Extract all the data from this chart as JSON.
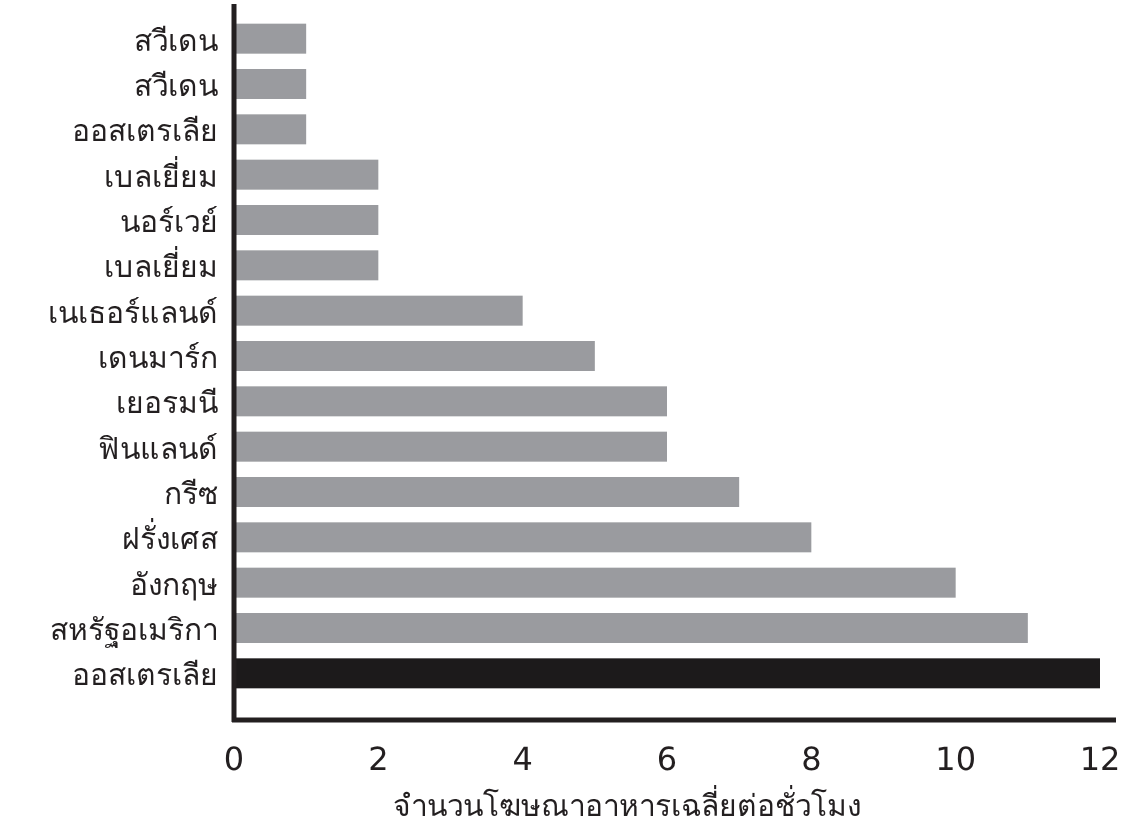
{
  "chart_data": {
    "type": "bar",
    "orientation": "horizontal",
    "xlabel": "จำนวนโฆษณาอาหารเฉลี่ยต่อชั่วโมง",
    "categories": [
      "สวีเดน",
      "สวีเดน",
      "ออสเตรเลีย",
      "เบลเยี่ยม",
      "นอร์เวย์",
      "เบลเยี่ยม",
      "เนเธอร์แลนด์",
      "เดนมาร์ก",
      "เยอรมนี",
      "ฟินแลนด์",
      "กรีซ",
      "ฝรั่งเศส",
      "อังกฤษ",
      "สหรัฐอเมริกา",
      "ออสเตรเลีย"
    ],
    "values": [
      1,
      1,
      1,
      2,
      2,
      2,
      4,
      5,
      6,
      6,
      7,
      8,
      10,
      11,
      12
    ],
    "colors": [
      "#9a9b9f",
      "#9a9b9f",
      "#9a9b9f",
      "#9a9b9f",
      "#9a9b9f",
      "#9a9b9f",
      "#9a9b9f",
      "#9a9b9f",
      "#9a9b9f",
      "#9a9b9f",
      "#9a9b9f",
      "#9a9b9f",
      "#9a9b9f",
      "#9a9b9f",
      "#1c1a1b"
    ],
    "xlim": [
      0,
      12
    ],
    "xticks": [
      0,
      2,
      4,
      6,
      8,
      10,
      12
    ],
    "grid": false
  }
}
